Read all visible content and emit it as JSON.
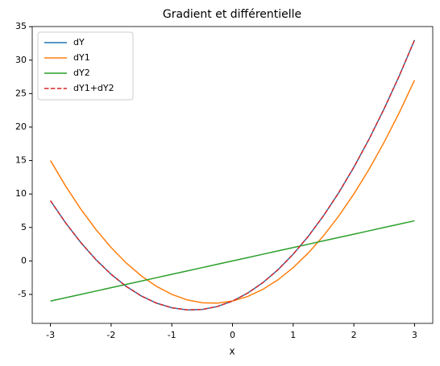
{
  "chart_data": {
    "type": "line",
    "title": "Gradient et différentielle",
    "x_label": "x",
    "x": [
      -3,
      -2.75,
      -2.5,
      -2.25,
      -2,
      -1.75,
      -1.5,
      -1.25,
      -1,
      -0.75,
      -0.5,
      -0.25,
      0,
      0.25,
      0.5,
      0.75,
      1,
      1.25,
      1.5,
      1.75,
      2,
      2.25,
      2.5,
      2.75,
      3
    ],
    "series": [
      {
        "name": "dY",
        "color": "#1f77b4",
        "dash": false,
        "values": [
          9,
          5.6875,
          2.75,
          0.1875,
          -2,
          -3.8125,
          -5.25,
          -6.3125,
          -7,
          -7.3125,
          -7.25,
          -6.8125,
          -6,
          -4.8125,
          -3.25,
          -1.3125,
          1,
          3.6875,
          6.75,
          10.1875,
          14,
          18.1875,
          22.75,
          27.6875,
          33
        ]
      },
      {
        "name": "dY1",
        "color": "#ff7f0e",
        "dash": false,
        "values": [
          15,
          11.1875,
          7.75,
          4.6875,
          2,
          -0.3125,
          -2.25,
          -3.8125,
          -5,
          -5.8125,
          -6.25,
          -6.3125,
          -6,
          -5.3125,
          -4.25,
          -2.8125,
          -1,
          1.1875,
          3.75,
          6.6875,
          10,
          13.6875,
          17.75,
          22.1875,
          27
        ]
      },
      {
        "name": "dY2",
        "color": "#2ca02c",
        "dash": false,
        "values": [
          -6,
          -5.5,
          -5,
          -4.5,
          -4,
          -3.5,
          -3,
          -2.5,
          -2,
          -1.5,
          -1,
          -0.5,
          0,
          0.5,
          1,
          1.5,
          2,
          2.5,
          3,
          3.5,
          4,
          4.5,
          5,
          5.5,
          6
        ]
      },
      {
        "name": "dY1+dY2",
        "color": "#d62728",
        "dash": true,
        "values": [
          9,
          5.6875,
          2.75,
          0.1875,
          -2,
          -3.8125,
          -5.25,
          -6.3125,
          -7,
          -7.3125,
          -7.25,
          -6.8125,
          -6,
          -4.8125,
          -3.25,
          -1.3125,
          1,
          3.6875,
          6.75,
          10.1875,
          14,
          18.1875,
          22.75,
          27.6875,
          33
        ]
      }
    ],
    "xlim": [
      -3.3,
      3.3
    ],
    "xticks": [
      -3,
      -2,
      -1,
      0,
      1,
      2,
      3
    ],
    "ylim": [
      -9.33,
      35.02
    ],
    "yticks": [
      -5,
      0,
      5,
      10,
      15,
      20,
      25,
      30,
      35
    ],
    "legend": "upper left",
    "grid": false
  }
}
